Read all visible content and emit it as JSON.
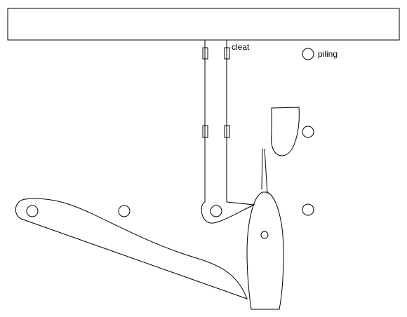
{
  "diagram": {
    "labels": {
      "cleat": "cleat",
      "piling": "piling"
    },
    "colors": {
      "stroke": "#000000",
      "background": "#ffffff"
    },
    "elements": {
      "dock": "dock",
      "dock_lines": 2,
      "cleats": 4,
      "pilings": 6,
      "boats": 3
    }
  }
}
